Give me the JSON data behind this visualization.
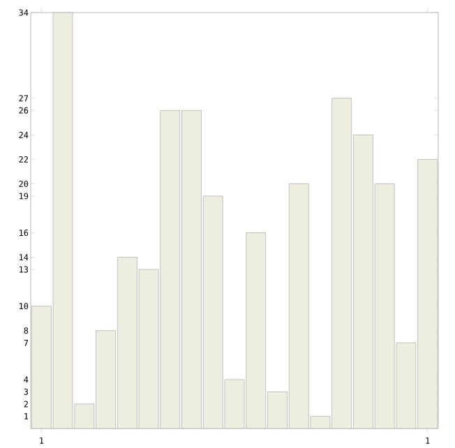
{
  "chart_data": {
    "type": "bar",
    "categories": [
      "1",
      null,
      null,
      null,
      null,
      null,
      null,
      null,
      null,
      null,
      null,
      null,
      null,
      null,
      null,
      null,
      null,
      null,
      "1"
    ],
    "values": [
      10,
      34,
      2,
      8,
      14,
      13,
      26,
      26,
      19,
      4,
      16,
      3,
      20,
      1,
      27,
      24,
      20,
      7,
      22
    ],
    "color": "#eeeee0",
    "ylim": [
      0,
      34
    ],
    "yticks": [
      1,
      2,
      3,
      4,
      7,
      8,
      10,
      13,
      14,
      16,
      19,
      20,
      22,
      24,
      26,
      27,
      34
    ],
    "grid": false
  }
}
